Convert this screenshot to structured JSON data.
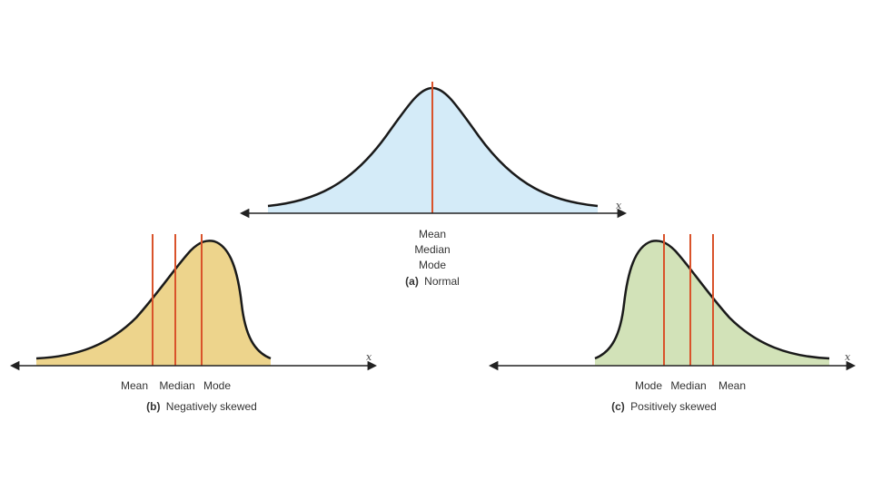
{
  "colors": {
    "normal_fill": "#d4ebf8",
    "negative_fill": "#edd48c",
    "positive_fill": "#d2e2b8",
    "curve": "#1a1a1a",
    "marker_line": "#d9532b",
    "axis": "#222222",
    "text": "#333333"
  },
  "panels": {
    "normal": {
      "stats": [
        "Mean",
        "Median",
        "Mode"
      ],
      "caption_letter": "(a)",
      "caption_text": "Normal",
      "axis_label": "x"
    },
    "negative": {
      "stats": [
        "Mean",
        "Median",
        "Mode"
      ],
      "caption_letter": "(b)",
      "caption_text": "Negatively skewed",
      "axis_label": "x"
    },
    "positive": {
      "stats": [
        "Mode",
        "Median",
        "Mean"
      ],
      "caption_letter": "(c)",
      "caption_text": "Positively skewed",
      "axis_label": "x"
    }
  }
}
